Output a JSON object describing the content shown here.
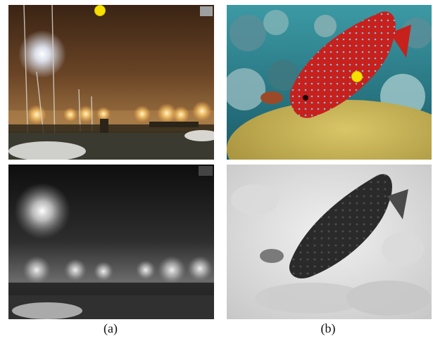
{
  "figure": {
    "captions": [
      "(a)",
      "(b)"
    ]
  },
  "colors": {
    "marker": "#f5e000",
    "harbor_fog": "#7a5430",
    "coral_fish": "#c8201c",
    "reef_water": "#1f7a86",
    "brain_coral": "#c9b455"
  },
  "panels": [
    {
      "id": "harbor-foggy-night",
      "style": "color photo"
    },
    {
      "id": "coral-grouper",
      "style": "color photo"
    },
    {
      "id": "harbor-foggy-night-map",
      "style": "grayscale map"
    },
    {
      "id": "coral-grouper-map",
      "style": "grayscale map"
    }
  ]
}
